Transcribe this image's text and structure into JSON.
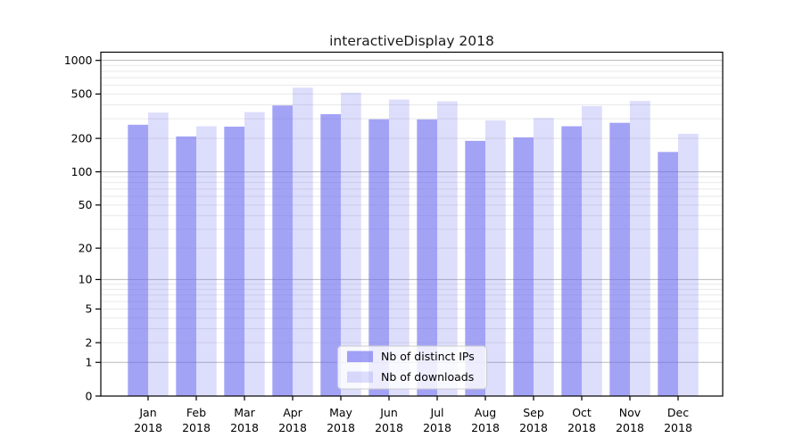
{
  "chart_data": {
    "type": "bar",
    "title": "interactiveDisplay 2018",
    "categories": [
      [
        "Jan",
        "2018"
      ],
      [
        "Feb",
        "2018"
      ],
      [
        "Mar",
        "2018"
      ],
      [
        "Apr",
        "2018"
      ],
      [
        "May",
        "2018"
      ],
      [
        "Jun",
        "2018"
      ],
      [
        "Jul",
        "2018"
      ],
      [
        "Aug",
        "2018"
      ],
      [
        "Sep",
        "2018"
      ],
      [
        "Oct",
        "2018"
      ],
      [
        "Nov",
        "2018"
      ],
      [
        "Dec",
        "2018"
      ]
    ],
    "series": [
      {
        "name": "Nb of distinct IPs",
        "color": "#6565f0",
        "opacity": 0.6,
        "effective_color": "#a3a3f3",
        "values": [
          265,
          208,
          255,
          395,
          330,
          297,
          296,
          190,
          204,
          257,
          276,
          151
        ]
      },
      {
        "name": "Nb of downloads",
        "color": "#6565f0",
        "opacity": 0.22,
        "effective_color": "#dcdcf8",
        "values": [
          341,
          257,
          344,
          570,
          514,
          446,
          430,
          290,
          305,
          390,
          433,
          220
        ]
      }
    ],
    "yscale": "log1p",
    "yticks": [
      0,
      1,
      2,
      5,
      10,
      20,
      50,
      100,
      200,
      500,
      1000
    ],
    "ylim": [
      0,
      1175
    ],
    "grid": {
      "major_lines": [
        1,
        10,
        100,
        1000
      ],
      "minor_multipliers": [
        2,
        3,
        4,
        5,
        6,
        7,
        8,
        9
      ],
      "minor_decades": [
        1,
        10,
        100
      ],
      "major_color": "#b8b8b8",
      "minor_color": "#e8e8e8"
    },
    "legend_position": "lower center"
  }
}
